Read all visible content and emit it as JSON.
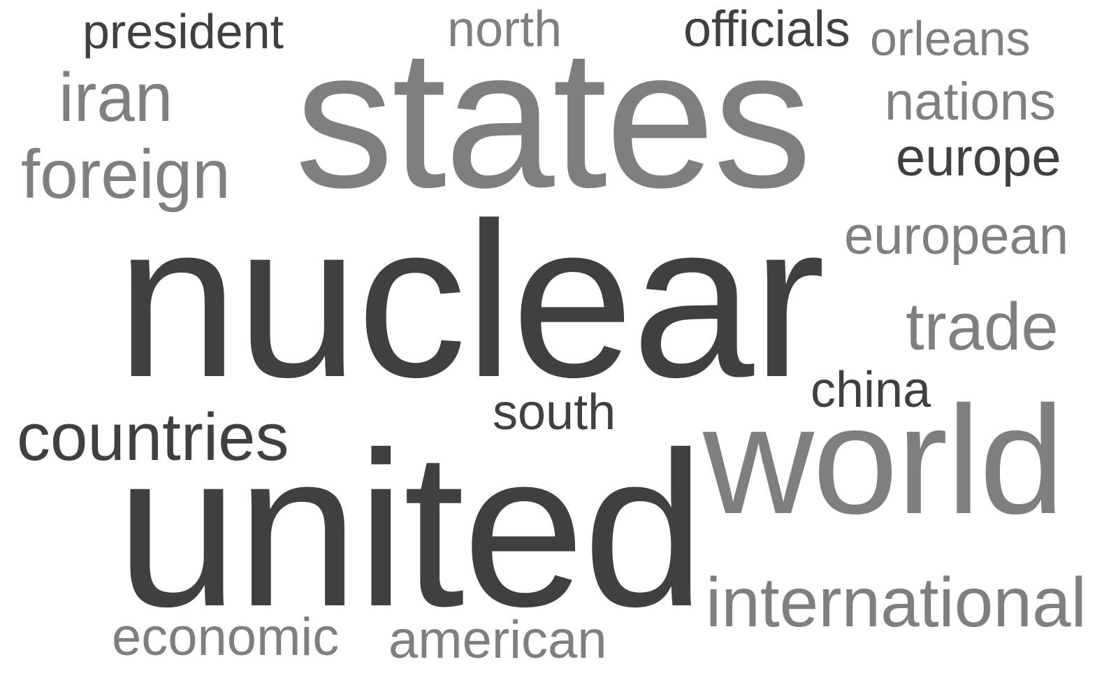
{
  "word_cloud": {
    "words": [
      {
        "id": "nuclear",
        "text": "nuclear",
        "tone": "dark"
      },
      {
        "id": "united",
        "text": "united",
        "tone": "dark"
      },
      {
        "id": "states",
        "text": "states",
        "tone": "mid"
      },
      {
        "id": "world",
        "text": "world",
        "tone": "mid"
      },
      {
        "id": "international",
        "text": "international",
        "tone": "mid"
      },
      {
        "id": "countries",
        "text": "countries",
        "tone": "dark"
      },
      {
        "id": "foreign",
        "text": "foreign",
        "tone": "mid"
      },
      {
        "id": "iran",
        "text": "iran",
        "tone": "mid"
      },
      {
        "id": "president",
        "text": "president",
        "tone": "dark"
      },
      {
        "id": "north",
        "text": "north",
        "tone": "mid"
      },
      {
        "id": "officials",
        "text": "officials",
        "tone": "dark"
      },
      {
        "id": "orleans",
        "text": "orleans",
        "tone": "mid"
      },
      {
        "id": "nations",
        "text": "nations",
        "tone": "mid"
      },
      {
        "id": "europe",
        "text": "europe",
        "tone": "dark"
      },
      {
        "id": "european",
        "text": "european",
        "tone": "mid"
      },
      {
        "id": "trade",
        "text": "trade",
        "tone": "mid"
      },
      {
        "id": "china",
        "text": "china",
        "tone": "dark"
      },
      {
        "id": "south",
        "text": "south",
        "tone": "dark"
      },
      {
        "id": "economic",
        "text": "economic",
        "tone": "mid"
      },
      {
        "id": "american",
        "text": "american",
        "tone": "mid"
      }
    ],
    "colors": {
      "dark": "#404040",
      "mid": "#7f7f7f",
      "background": "#ffffff"
    }
  }
}
